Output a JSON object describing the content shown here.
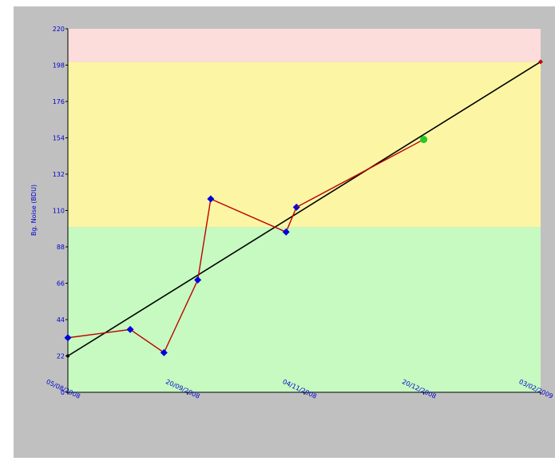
{
  "chart_data": {
    "type": "line",
    "title": "",
    "xlabel": "",
    "ylabel": "Bg. Noise (BDU)",
    "x_ticks": [
      "05/08/2008",
      "20/09/2008",
      "04/11/2008",
      "20/12/2008",
      "03/02/2009"
    ],
    "y_ticks": [
      0,
      22,
      44,
      66,
      88,
      110,
      132,
      154,
      176,
      198,
      220
    ],
    "ylim": [
      0,
      220
    ],
    "xlim": [
      "05/08/2008",
      "03/02/2009"
    ],
    "grid": false,
    "bands": [
      {
        "from": 0,
        "to": 100,
        "color": "#c6fac0"
      },
      {
        "from": 100,
        "to": 200,
        "color": "#fbf5a4"
      },
      {
        "from": 200,
        "to": 220,
        "color": "#fddcdc"
      }
    ],
    "series": [
      {
        "type": "measured",
        "color": "#c00000",
        "marker_color": "#0000dd",
        "points": [
          {
            "x": "05/08/2008",
            "y": 33
          },
          {
            "x": "29/08/2008",
            "y": 38
          },
          {
            "x": "11/09/2008",
            "y": 24
          },
          {
            "x": "24/09/2008",
            "y": 68
          },
          {
            "x": "29/09/2008",
            "y": 117
          },
          {
            "x": "28/10/2008",
            "y": 97
          },
          {
            "x": "01/11/2008",
            "y": 112
          }
        ]
      },
      {
        "type": "prediction-segment",
        "color": "#c00000",
        "points": [
          {
            "x": "01/11/2008",
            "y": 112
          },
          {
            "x": "20/12/2008",
            "y": 153
          }
        ]
      },
      {
        "type": "prediction-point",
        "color": "#22cc22",
        "points": [
          {
            "x": "20/12/2008",
            "y": 153
          }
        ]
      },
      {
        "type": "trend",
        "color": "#000000",
        "points": [
          {
            "x": "05/08/2008",
            "y": 22
          },
          {
            "x": "03/02/2009",
            "y": 200
          }
        ]
      },
      {
        "type": "endpoint",
        "color": "#c00000",
        "points": [
          {
            "x": "03/02/2009",
            "y": 200
          }
        ]
      }
    ]
  },
  "colors": {
    "frame": "#c0c0c0",
    "axis_text": "#0000cc",
    "axis_line": "#000000"
  }
}
